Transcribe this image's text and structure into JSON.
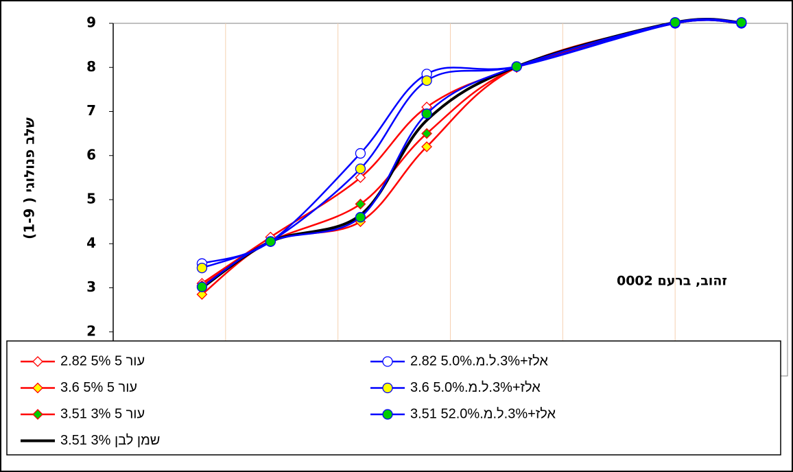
{
  "chart_data": {
    "type": "line",
    "y_label": "שלב פנולוגי ( 1-9)",
    "annotation": "זהוב, ברעם 0002",
    "x": [
      0.79,
      1.4,
      2.2,
      2.79,
      3.59,
      5.0,
      5.59
    ],
    "xlim": [
      0,
      6
    ],
    "xticks": [
      1,
      2,
      3,
      4,
      5
    ],
    "ylim": [
      1,
      9
    ],
    "yticks": [
      2,
      3,
      4,
      5,
      6,
      7,
      8,
      9
    ],
    "grid": true,
    "series": [
      {
        "name": "2.82 5% 5 עור",
        "color": "#ff0000",
        "marker": "diamond",
        "marker_fill": "#ffffff",
        "values": [
          3.1,
          4.15,
          5.5,
          7.1,
          8.0,
          9.0,
          9.0
        ]
      },
      {
        "name": "3.6 5% 5 עור",
        "color": "#ff0000",
        "marker": "diamond",
        "marker_fill": "#ffff00",
        "values": [
          2.85,
          4.05,
          4.5,
          6.2,
          8.0,
          9.0,
          9.0
        ]
      },
      {
        "name": "3.51 3% 5 עור",
        "color": "#ff0000",
        "marker": "diamond",
        "marker_fill": "#00cc00",
        "values": [
          3.05,
          4.05,
          4.9,
          6.5,
          8.0,
          9.0,
          9.0
        ]
      },
      {
        "name": "שמן לבן 3% 3.51",
        "color": "#000000",
        "marker": "none",
        "marker_fill": "none",
        "values": [
          3.0,
          4.05,
          4.65,
          6.8,
          8.02,
          9.02,
          9.02
        ]
      },
      {
        "name": "2.82 5.0%.אלז+3%.ל.מ",
        "color": "#0000ff",
        "marker": "circle",
        "marker_fill": "#ffffff",
        "values": [
          3.55,
          4.05,
          6.05,
          7.85,
          8.02,
          9.0,
          9.0
        ]
      },
      {
        "name": "3.6 5.0%.אלז+3%.ל.מ",
        "color": "#0000ff",
        "marker": "circle",
        "marker_fill": "#ffff00",
        "values": [
          3.45,
          4.05,
          5.7,
          7.7,
          8.02,
          9.02,
          9.02
        ]
      },
      {
        "name": "3.51 52.0%.אלז+3%.ל.מ",
        "color": "#0000ff",
        "marker": "circle",
        "marker_fill": "#00cc00",
        "values": [
          3.02,
          4.05,
          4.6,
          6.95,
          8.02,
          9.02,
          9.02
        ]
      }
    ]
  }
}
